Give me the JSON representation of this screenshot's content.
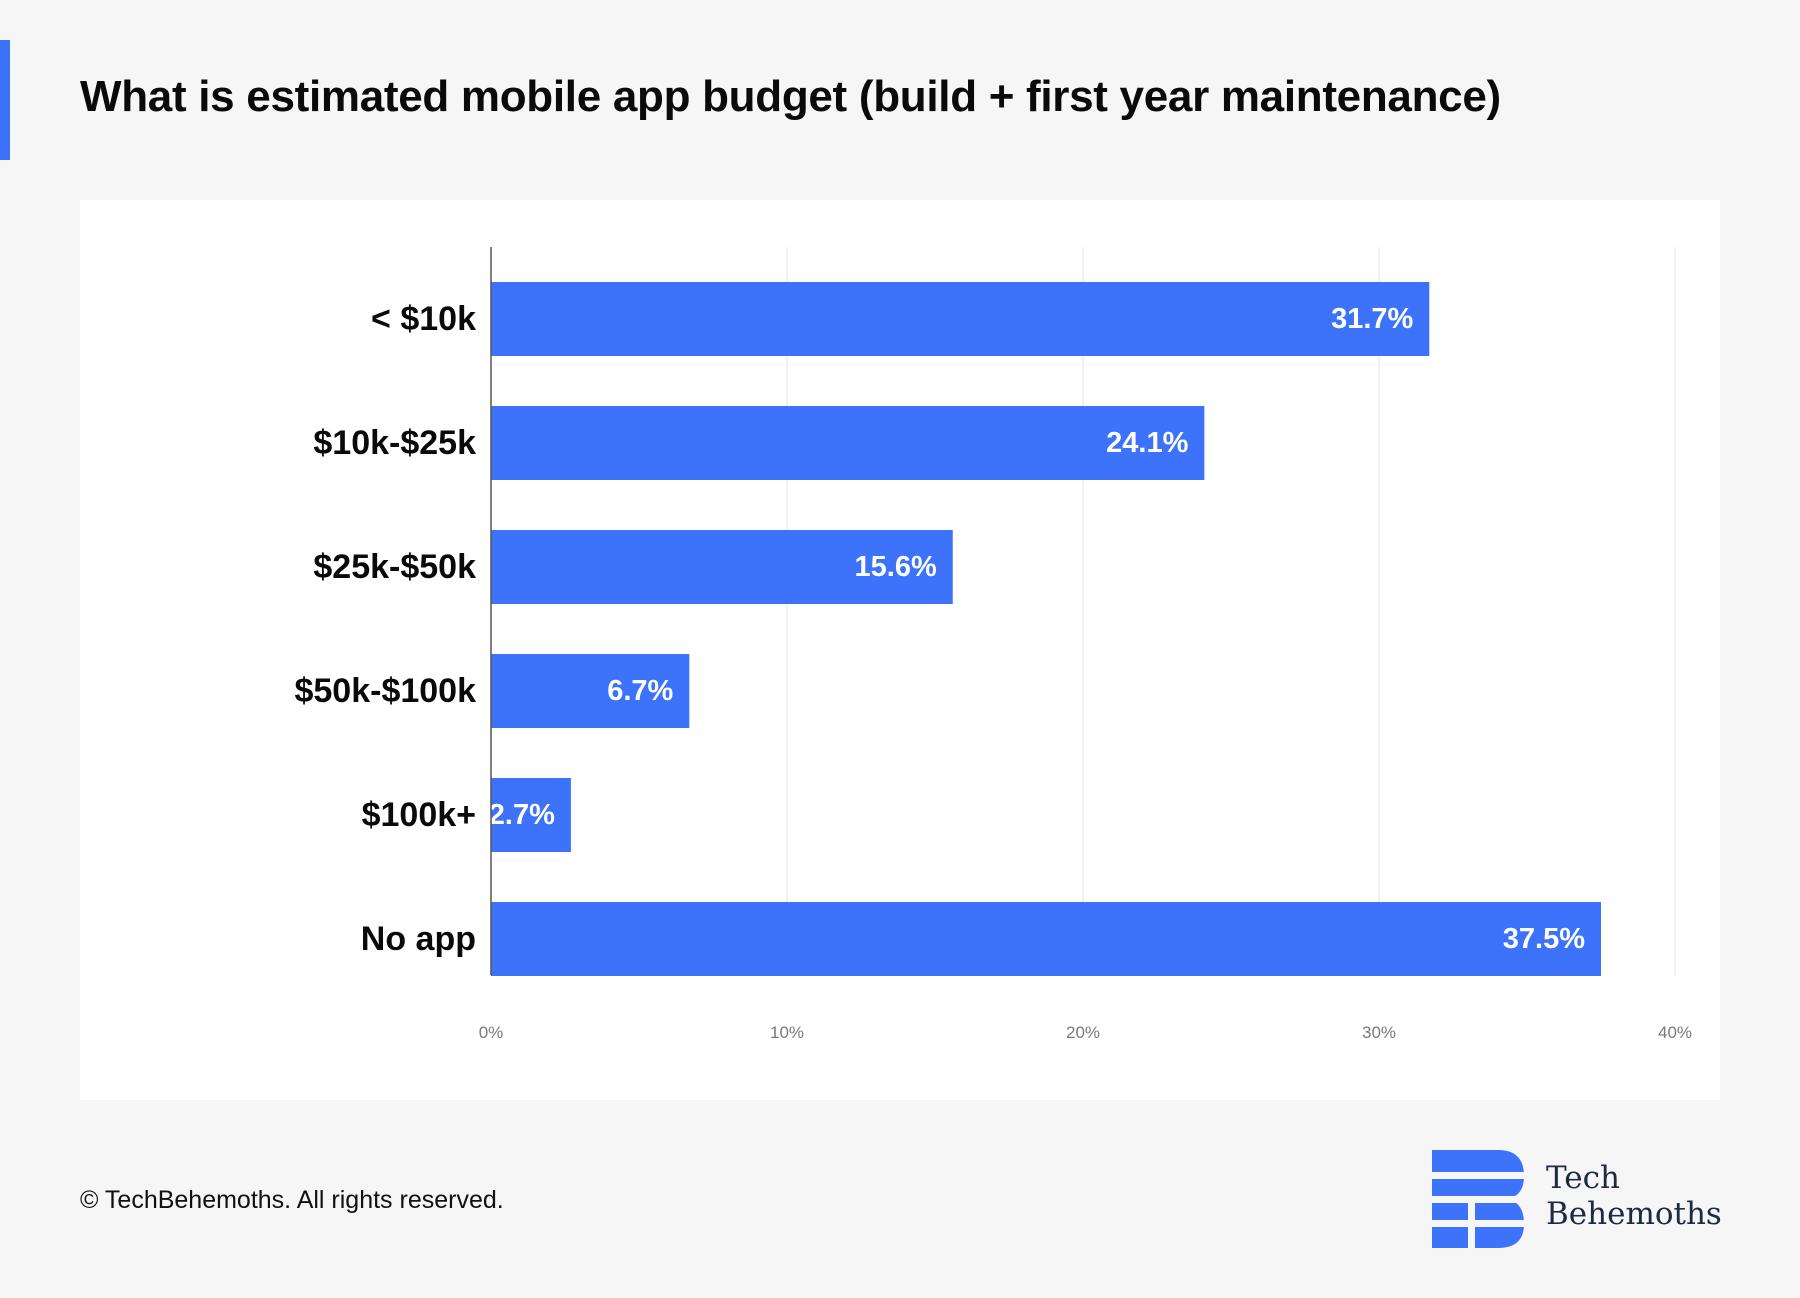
{
  "title": "What is estimated mobile app budget (build + first year maintenance)",
  "footer": {
    "copyright": "© TechBehemoths. All rights reserved."
  },
  "brand": {
    "line1": "Tech",
    "line2": "Behemoths",
    "icon": "techbehemoths-logo-icon"
  },
  "colors": {
    "accent": "#3d73fa",
    "bar": "#3d73fa",
    "background": "#f6f6f6",
    "panel": "#ffffff"
  },
  "chart_data": {
    "type": "bar",
    "orientation": "horizontal",
    "categories": [
      "< $10k",
      "$10k-$25k",
      "$25k-$50k",
      "$50k-$100k",
      "$100k+",
      "No app"
    ],
    "values": [
      31.7,
      24.1,
      15.6,
      6.7,
      2.7,
      37.5
    ],
    "data_labels": [
      "31.7%",
      "24.1%",
      "15.6%",
      "6.7%",
      "2.7%",
      "37.5%"
    ],
    "xlim": [
      0,
      40
    ],
    "x_ticks": [
      0,
      10,
      20,
      30,
      40
    ],
    "x_tick_labels": [
      "0%",
      "10%",
      "20%",
      "30%",
      "40%"
    ],
    "grid": "vertical",
    "legend": "none"
  }
}
